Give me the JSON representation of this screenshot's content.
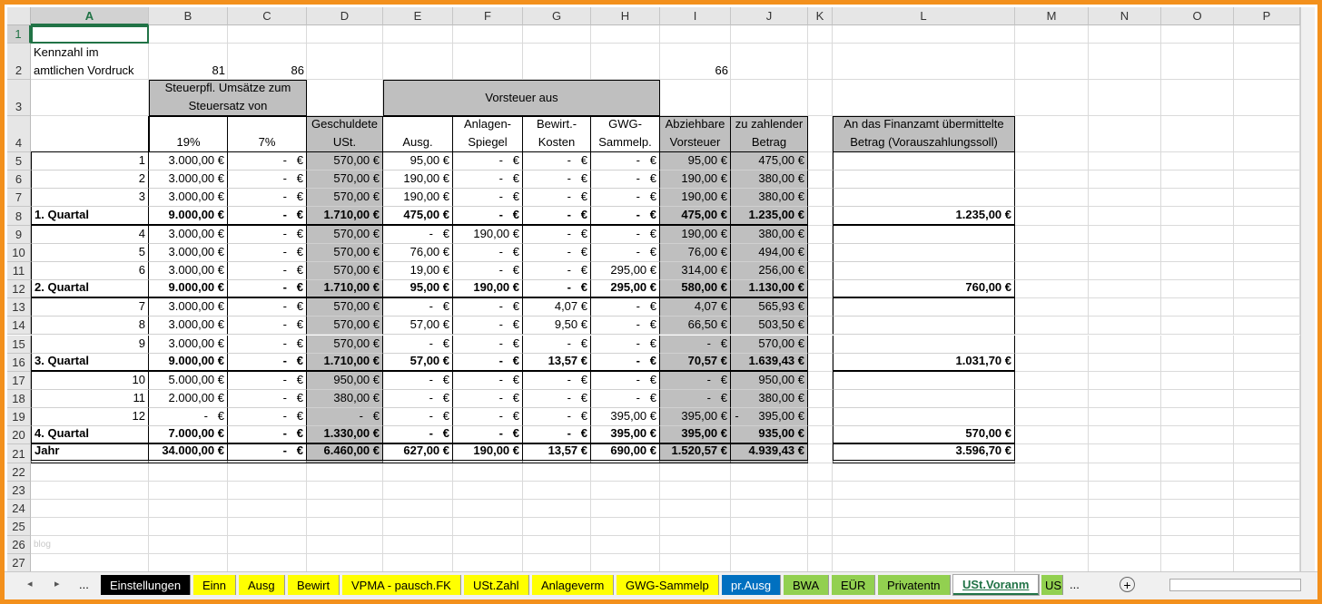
{
  "sheet": {
    "columns": [
      "A",
      "B",
      "C",
      "D",
      "E",
      "F",
      "G",
      "H",
      "I",
      "J",
      "K",
      "L",
      "M",
      "N",
      "O",
      "P"
    ],
    "row_numbers": [
      1,
      2,
      3,
      4,
      5,
      6,
      7,
      8,
      9,
      10,
      11,
      12,
      13,
      14,
      15,
      16,
      17,
      18,
      19,
      20,
      21,
      22,
      23,
      24,
      25,
      26,
      27
    ],
    "header": {
      "a2": "Kennzahl im amtlichen Vordruck",
      "b2": 81,
      "c2": 86,
      "i2": 66,
      "b3": "Steuerpfl. Umsätze zum Steuersatz von",
      "e3": "Vorsteuer aus",
      "row4": [
        "19%",
        "7%",
        "Geschuldete USt.",
        "Ausg.",
        "Anlagen-Spiegel",
        "Bewirt.-Kosten",
        "GWG-Sammelp.",
        "Abziehbare Vorsteuer",
        "zu zahlender Betrag",
        "An das Finanzamt übermittelte Betrag (Vorauszahlungssoll)"
      ]
    },
    "rows": [
      [
        "1",
        "3.000,00 €",
        "-   €",
        "570,00 €",
        "95,00 €",
        "-   €",
        "-   €",
        "-   €",
        "95,00 €",
        "475,00 €",
        null
      ],
      [
        "2",
        "3.000,00 €",
        "-   €",
        "570,00 €",
        "190,00 €",
        "-   €",
        "-   €",
        "-   €",
        "190,00 €",
        "380,00 €",
        null
      ],
      [
        "3",
        "3.000,00 €",
        "-   €",
        "570,00 €",
        "190,00 €",
        "-   €",
        "-   €",
        "-   €",
        "190,00 €",
        "380,00 €",
        null
      ],
      [
        "1. Quartal",
        "9.000,00 €",
        "-   €",
        "1.710,00 €",
        "475,00 €",
        "-   €",
        "-   €",
        "-   €",
        "475,00 €",
        "1.235,00 €",
        "1.235,00 €"
      ],
      [
        "4",
        "3.000,00 €",
        "-   €",
        "570,00 €",
        "-   €",
        "190,00 €",
        "-   €",
        "-   €",
        "190,00 €",
        "380,00 €",
        null
      ],
      [
        "5",
        "3.000,00 €",
        "-   €",
        "570,00 €",
        "76,00 €",
        "-   €",
        "-   €",
        "-   €",
        "76,00 €",
        "494,00 €",
        null
      ],
      [
        "6",
        "3.000,00 €",
        "-   €",
        "570,00 €",
        "19,00 €",
        "-   €",
        "-   €",
        "295,00 €",
        "314,00 €",
        "256,00 €",
        null
      ],
      [
        "2. Quartal",
        "9.000,00 €",
        "-   €",
        "1.710,00 €",
        "95,00 €",
        "190,00 €",
        "-   €",
        "295,00 €",
        "580,00 €",
        "1.130,00 €",
        "760,00 €"
      ],
      [
        "7",
        "3.000,00 €",
        "-   €",
        "570,00 €",
        "-   €",
        "-   €",
        "4,07 €",
        "-   €",
        "4,07 €",
        "565,93 €",
        null
      ],
      [
        "8",
        "3.000,00 €",
        "-   €",
        "570,00 €",
        "57,00 €",
        "-   €",
        "9,50 €",
        "-   €",
        "66,50 €",
        "503,50 €",
        null
      ],
      [
        "9",
        "3.000,00 €",
        "-   €",
        "570,00 €",
        "-   €",
        "-   €",
        "-   €",
        "-   €",
        "-   €",
        "570,00 €",
        null
      ],
      [
        "3. Quartal",
        "9.000,00 €",
        "-   €",
        "1.710,00 €",
        "57,00 €",
        "-   €",
        "13,57 €",
        "-   €",
        "70,57 €",
        "1.639,43 €",
        "1.031,70 €"
      ],
      [
        "10",
        "5.000,00 €",
        "-   €",
        "950,00 €",
        "-   €",
        "-   €",
        "-   €",
        "-   €",
        "-   €",
        "950,00 €",
        null
      ],
      [
        "11",
        "2.000,00 €",
        "-   €",
        "380,00 €",
        "-   €",
        "-   €",
        "-   €",
        "-   €",
        "-   €",
        "380,00 €",
        null
      ],
      [
        "12",
        "-   €",
        "-   €",
        "-   €",
        "-   €",
        "-   €",
        "-   €",
        "395,00 €",
        "395,00 €",
        "-      395,00 €",
        null
      ],
      [
        "4. Quartal",
        "7.000,00 €",
        "-   €",
        "1.330,00 €",
        "-   €",
        "-   €",
        "-   €",
        "395,00 €",
        "395,00 €",
        "935,00 €",
        "570,00 €"
      ],
      [
        "Jahr",
        "34.000,00 €",
        "-   €",
        "6.460,00 €",
        "627,00 €",
        "190,00 €",
        "13,57 €",
        "690,00 €",
        "1.520,57 €",
        "4.939,43 €",
        "3.596,70 €"
      ]
    ],
    "watermark": "blog"
  },
  "tabs": {
    "overflow": "...",
    "items": [
      {
        "label": "Einstellungen",
        "color": "#000000"
      },
      {
        "label": "Einn",
        "color": "#ffff00"
      },
      {
        "label": "Ausg",
        "color": "#ffff00"
      },
      {
        "label": "Bewirt",
        "color": "#ffff00"
      },
      {
        "label": "VPMA - pausch.FK",
        "color": "#ffff00"
      },
      {
        "label": "USt.Zahl",
        "color": "#ffff00"
      },
      {
        "label": "Anlageverm",
        "color": "#ffff00"
      },
      {
        "label": "GWG-Sammelp",
        "color": "#ffff00"
      },
      {
        "label": "pr.Ausg",
        "color": "#0070c0"
      },
      {
        "label": "BWA",
        "color": "#92d050"
      },
      {
        "label": "EÜR",
        "color": "#92d050"
      },
      {
        "label": "Privatentn",
        "color": "#92d050"
      },
      {
        "label": "USt.Voranm",
        "color": "#ffffff",
        "active": true
      },
      {
        "label": "US",
        "color": "#92d050"
      }
    ]
  }
}
